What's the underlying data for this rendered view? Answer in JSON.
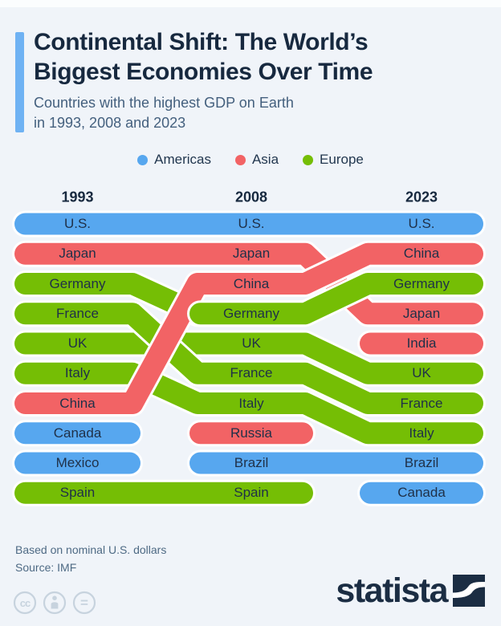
{
  "header": {
    "title_line1": "Continental Shift: The World’s",
    "title_line2": "Biggest Economies Over Time",
    "subtitle_line1": "Countries with the highest GDP on Earth",
    "subtitle_line2": "in 1993, 2008 and 2023",
    "accent_color": "#6FB2F3"
  },
  "legend": {
    "items": [
      {
        "label": "Americas",
        "color": "#57A7EF"
      },
      {
        "label": "Asia",
        "color": "#F26365"
      },
      {
        "label": "Europe",
        "color": "#75BE05"
      }
    ]
  },
  "chart_data": {
    "type": "table",
    "title": "Countries with the highest GDP on Earth in 1993, 2008 and 2023",
    "year_labels": [
      "1993",
      "2008",
      "2023"
    ],
    "continent_colors": {
      "Americas": "#57A7EF",
      "Asia": "#F26365",
      "Europe": "#75BE05"
    },
    "rankings": {
      "1993": [
        "U.S.",
        "Japan",
        "Germany",
        "France",
        "UK",
        "Italy",
        "China",
        "Canada",
        "Mexico",
        "Spain"
      ],
      "2008": [
        "U.S.",
        "Japan",
        "China",
        "Germany",
        "UK",
        "France",
        "Italy",
        "Russia",
        "Brazil",
        "Spain"
      ],
      "2023": [
        "U.S.",
        "China",
        "Germany",
        "Japan",
        "India",
        "UK",
        "France",
        "Italy",
        "Brazil",
        "Canada"
      ]
    },
    "countries": [
      {
        "name": "U.S.",
        "continent": "Americas",
        "ranks": [
          1,
          1,
          1
        ]
      },
      {
        "name": "Japan",
        "continent": "Asia",
        "ranks": [
          2,
          2,
          4
        ]
      },
      {
        "name": "Germany",
        "continent": "Europe",
        "ranks": [
          3,
          4,
          3
        ]
      },
      {
        "name": "France",
        "continent": "Europe",
        "ranks": [
          4,
          6,
          7
        ]
      },
      {
        "name": "UK",
        "continent": "Europe",
        "ranks": [
          5,
          5,
          6
        ]
      },
      {
        "name": "Italy",
        "continent": "Europe",
        "ranks": [
          6,
          7,
          8
        ]
      },
      {
        "name": "China",
        "continent": "Asia",
        "ranks": [
          7,
          3,
          2
        ]
      },
      {
        "name": "Canada",
        "continent": "Americas",
        "ranks": [
          8,
          null,
          10
        ]
      },
      {
        "name": "Mexico",
        "continent": "Americas",
        "ranks": [
          9,
          null,
          null
        ]
      },
      {
        "name": "Spain",
        "continent": "Europe",
        "ranks": [
          10,
          10,
          null
        ]
      },
      {
        "name": "Russia",
        "continent": "Asia",
        "ranks": [
          null,
          8,
          null
        ]
      },
      {
        "name": "Brazil",
        "continent": "Americas",
        "ranks": [
          null,
          9,
          9
        ]
      },
      {
        "name": "India",
        "continent": "Asia",
        "ranks": [
          null,
          null,
          5
        ]
      }
    ]
  },
  "footer": {
    "note": "Based on nominal U.S. dollars",
    "source": "Source: IMF",
    "license_glyph": "cc",
    "equals_glyph": "=",
    "icon_color": "#C7D3DE"
  },
  "branding": {
    "logo_text": "statista",
    "logo_color": "#1B2D43"
  }
}
